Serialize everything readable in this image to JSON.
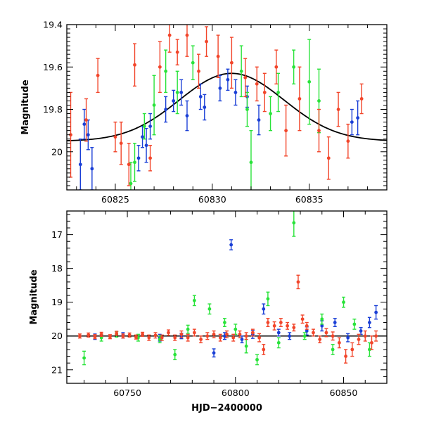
{
  "chart_data": [
    {
      "type": "scatter",
      "title": "",
      "xlabel": "",
      "ylabel": "Magnitude",
      "xlim": [
        60822.5,
        60839.0
      ],
      "ylim": [
        20.18,
        19.4
      ],
      "y_inverted": true,
      "xticks": [
        60825,
        60830,
        60835
      ],
      "xtick_labels": [
        "60825",
        "60830",
        "60835"
      ],
      "yticks": [
        19.4,
        19.6,
        19.8,
        20.0
      ],
      "ytick_labels": [
        "19.4",
        "19.6",
        "19.8",
        "20"
      ],
      "grid": false,
      "legend": "none",
      "model_curve": {
        "shape": "gaussian",
        "baseline": 19.95,
        "peak_mag": 19.63,
        "peak_x": 60831.0,
        "sigma": 2.7,
        "color": "#000000"
      },
      "series": [
        {
          "color": "#1a3fd6",
          "points": [
            [
              60823.2,
              20.06,
              0.12
            ],
            [
              60823.4,
              19.87,
              0.07
            ],
            [
              60823.6,
              19.92,
              0.07
            ],
            [
              60823.8,
              20.08,
              0.1
            ],
            [
              60826.2,
              20.03,
              0.06
            ],
            [
              60826.4,
              19.93,
              0.05
            ],
            [
              60826.6,
              19.97,
              0.08
            ],
            [
              60826.8,
              19.88,
              0.06
            ],
            [
              60827.6,
              19.8,
              0.06
            ],
            [
              60828.0,
              19.76,
              0.05
            ],
            [
              60828.4,
              19.72,
              0.06
            ],
            [
              60828.7,
              19.83,
              0.07
            ],
            [
              60829.4,
              19.74,
              0.06
            ],
            [
              60829.6,
              19.79,
              0.06
            ],
            [
              60830.4,
              19.7,
              0.06
            ],
            [
              60830.8,
              19.66,
              0.05
            ],
            [
              60831.2,
              19.72,
              0.06
            ],
            [
              60831.8,
              19.74,
              0.05
            ],
            [
              60832.4,
              19.85,
              0.07
            ],
            [
              60837.2,
              19.86,
              0.06
            ],
            [
              60837.5,
              19.84,
              0.08
            ]
          ]
        },
        {
          "color": "#29e33a",
          "points": [
            [
              60825.8,
              20.15,
              0.1
            ],
            [
              60826.0,
              20.05,
              0.09
            ],
            [
              60826.5,
              19.88,
              0.06
            ],
            [
              60827.0,
              19.78,
              0.14
            ],
            [
              60827.6,
              19.62,
              0.1
            ],
            [
              60828.2,
              19.72,
              0.1
            ],
            [
              60829.0,
              19.58,
              0.08
            ],
            [
              60831.5,
              19.62,
              0.12
            ],
            [
              60831.8,
              19.8,
              0.08
            ],
            [
              60832.0,
              20.05,
              0.15
            ],
            [
              60833.0,
              19.82,
              0.08
            ],
            [
              60833.4,
              19.72,
              0.09
            ],
            [
              60834.2,
              19.6,
              0.08
            ],
            [
              60835.0,
              19.67,
              0.2
            ],
            [
              60835.5,
              19.76,
              0.15
            ]
          ]
        },
        {
          "color": "#f2452a",
          "points": [
            [
              60822.7,
              19.92,
              0.2
            ],
            [
              60823.5,
              19.85,
              0.1
            ],
            [
              60824.1,
              19.64,
              0.08
            ],
            [
              60825.0,
              19.93,
              0.07
            ],
            [
              60825.3,
              19.96,
              0.1
            ],
            [
              60825.7,
              20.06,
              0.1
            ],
            [
              60826.0,
              19.59,
              0.1
            ],
            [
              60826.8,
              20.03,
              0.06
            ],
            [
              60827.3,
              19.6,
              0.12
            ],
            [
              60827.8,
              19.45,
              0.08
            ],
            [
              60828.2,
              19.53,
              0.06
            ],
            [
              60828.7,
              19.45,
              0.1
            ],
            [
              60829.3,
              19.62,
              0.08
            ],
            [
              60829.7,
              19.48,
              0.07
            ],
            [
              60830.3,
              19.55,
              0.1
            ],
            [
              60831.0,
              19.58,
              0.12
            ],
            [
              60831.7,
              19.65,
              0.09
            ],
            [
              60832.3,
              19.68,
              0.08
            ],
            [
              60832.7,
              19.72,
              0.09
            ],
            [
              60833.3,
              19.6,
              0.08
            ],
            [
              60833.8,
              19.9,
              0.12
            ],
            [
              60834.5,
              19.75,
              0.15
            ],
            [
              60835.5,
              19.9,
              0.1
            ],
            [
              60836.0,
              20.03,
              0.1
            ],
            [
              60836.5,
              19.8,
              0.08
            ],
            [
              60837.0,
              19.95,
              0.08
            ],
            [
              60837.7,
              19.75,
              0.07
            ]
          ]
        }
      ]
    },
    {
      "type": "scatter",
      "title": "",
      "xlabel": "HJD−2400000",
      "ylabel": "Magnitude",
      "xlim": [
        60722,
        60870
      ],
      "ylim": [
        21.4,
        16.3
      ],
      "y_inverted": true,
      "xticks": [
        60750,
        60800,
        60850
      ],
      "xtick_labels": [
        "60750",
        "60800",
        "60850"
      ],
      "yticks": [
        17,
        18,
        19,
        20,
        21
      ],
      "ytick_labels": [
        "17",
        "18",
        "19",
        "20",
        "21"
      ],
      "grid": false,
      "legend": "none",
      "reference_line": {
        "y": 20.0,
        "color": "#000000"
      },
      "series": [
        {
          "color": "#1a3fd6",
          "points": [
            [
              60735,
              20.02,
              0.08
            ],
            [
              60748,
              19.98,
              0.08
            ],
            [
              60765,
              20.05,
              0.1
            ],
            [
              60775,
              20.0,
              0.08
            ],
            [
              60790,
              20.5,
              0.12
            ],
            [
              60795,
              20.0,
              0.1
            ],
            [
              60798,
              17.3,
              0.15
            ],
            [
              60803,
              20.1,
              0.1
            ],
            [
              60808,
              19.95,
              0.12
            ],
            [
              60813,
              19.2,
              0.15
            ],
            [
              60820,
              19.9,
              0.1
            ],
            [
              60825,
              20.0,
              0.1
            ],
            [
              60833,
              19.85,
              0.12
            ],
            [
              60840,
              19.7,
              0.15
            ],
            [
              60846,
              19.6,
              0.12
            ],
            [
              60852,
              20.05,
              0.12
            ],
            [
              60858,
              19.85,
              0.1
            ],
            [
              60862,
              19.6,
              0.15
            ],
            [
              60865,
              19.3,
              0.2
            ]
          ]
        },
        {
          "color": "#29e33a",
          "points": [
            [
              60730,
              20.65,
              0.2
            ],
            [
              60738,
              20.05,
              0.1
            ],
            [
              60745,
              19.95,
              0.08
            ],
            [
              60755,
              20.05,
              0.1
            ],
            [
              60765,
              20.1,
              0.1
            ],
            [
              60772,
              20.55,
              0.15
            ],
            [
              60778,
              19.8,
              0.12
            ],
            [
              60781,
              18.95,
              0.15
            ],
            [
              60788,
              19.2,
              0.15
            ],
            [
              60795,
              19.6,
              0.12
            ],
            [
              60800,
              19.8,
              0.15
            ],
            [
              60805,
              20.3,
              0.2
            ],
            [
              60810,
              20.7,
              0.15
            ],
            [
              60815,
              18.9,
              0.2
            ],
            [
              60820,
              20.2,
              0.15
            ],
            [
              60827,
              16.65,
              0.4
            ],
            [
              60832,
              20.0,
              0.1
            ],
            [
              60840,
              19.5,
              0.15
            ],
            [
              60845,
              20.4,
              0.15
            ],
            [
              60850,
              19.0,
              0.15
            ],
            [
              60855,
              19.65,
              0.15
            ],
            [
              60862,
              20.4,
              0.2
            ]
          ]
        },
        {
          "color": "#f2452a",
          "points": [
            [
              60728,
              20.0,
              0.06
            ],
            [
              60732,
              19.97,
              0.06
            ],
            [
              60735,
              20.02,
              0.06
            ],
            [
              60738,
              19.95,
              0.06
            ],
            [
              60742,
              20.02,
              0.06
            ],
            [
              60745,
              19.92,
              0.06
            ],
            [
              60748,
              20.0,
              0.06
            ],
            [
              60751,
              19.97,
              0.06
            ],
            [
              60754,
              20.03,
              0.06
            ],
            [
              60757,
              19.95,
              0.06
            ],
            [
              60760,
              20.05,
              0.08
            ],
            [
              60763,
              19.98,
              0.08
            ],
            [
              60766,
              20.05,
              0.08
            ],
            [
              60769,
              19.9,
              0.08
            ],
            [
              60772,
              20.05,
              0.08
            ],
            [
              60775,
              19.95,
              0.1
            ],
            [
              60778,
              20.05,
              0.1
            ],
            [
              60781,
              19.9,
              0.1
            ],
            [
              60784,
              20.1,
              0.1
            ],
            [
              60787,
              20.0,
              0.1
            ],
            [
              60790,
              19.95,
              0.1
            ],
            [
              60793,
              20.05,
              0.1
            ],
            [
              60796,
              19.95,
              0.1
            ],
            [
              60799,
              20.05,
              0.1
            ],
            [
              60802,
              19.95,
              0.1
            ],
            [
              60805,
              20.0,
              0.1
            ],
            [
              60808,
              19.9,
              0.1
            ],
            [
              60811,
              20.05,
              0.12
            ],
            [
              60813,
              20.4,
              0.15
            ],
            [
              60815,
              19.6,
              0.12
            ],
            [
              60818,
              19.7,
              0.12
            ],
            [
              60821,
              19.6,
              0.12
            ],
            [
              60824,
              19.7,
              0.1
            ],
            [
              60827,
              19.75,
              0.1
            ],
            [
              60829,
              18.4,
              0.2
            ],
            [
              60831,
              19.5,
              0.12
            ],
            [
              60833,
              19.7,
              0.1
            ],
            [
              60836,
              19.9,
              0.1
            ],
            [
              60839,
              20.1,
              0.1
            ],
            [
              60842,
              19.9,
              0.12
            ],
            [
              60845,
              20.0,
              0.12
            ],
            [
              60848,
              20.2,
              0.15
            ],
            [
              60851,
              20.6,
              0.2
            ],
            [
              60854,
              20.4,
              0.2
            ],
            [
              60857,
              20.1,
              0.15
            ],
            [
              60860,
              20.0,
              0.15
            ],
            [
              60863,
              20.2,
              0.2
            ],
            [
              60865,
              20.0,
              0.15
            ]
          ]
        }
      ]
    }
  ]
}
